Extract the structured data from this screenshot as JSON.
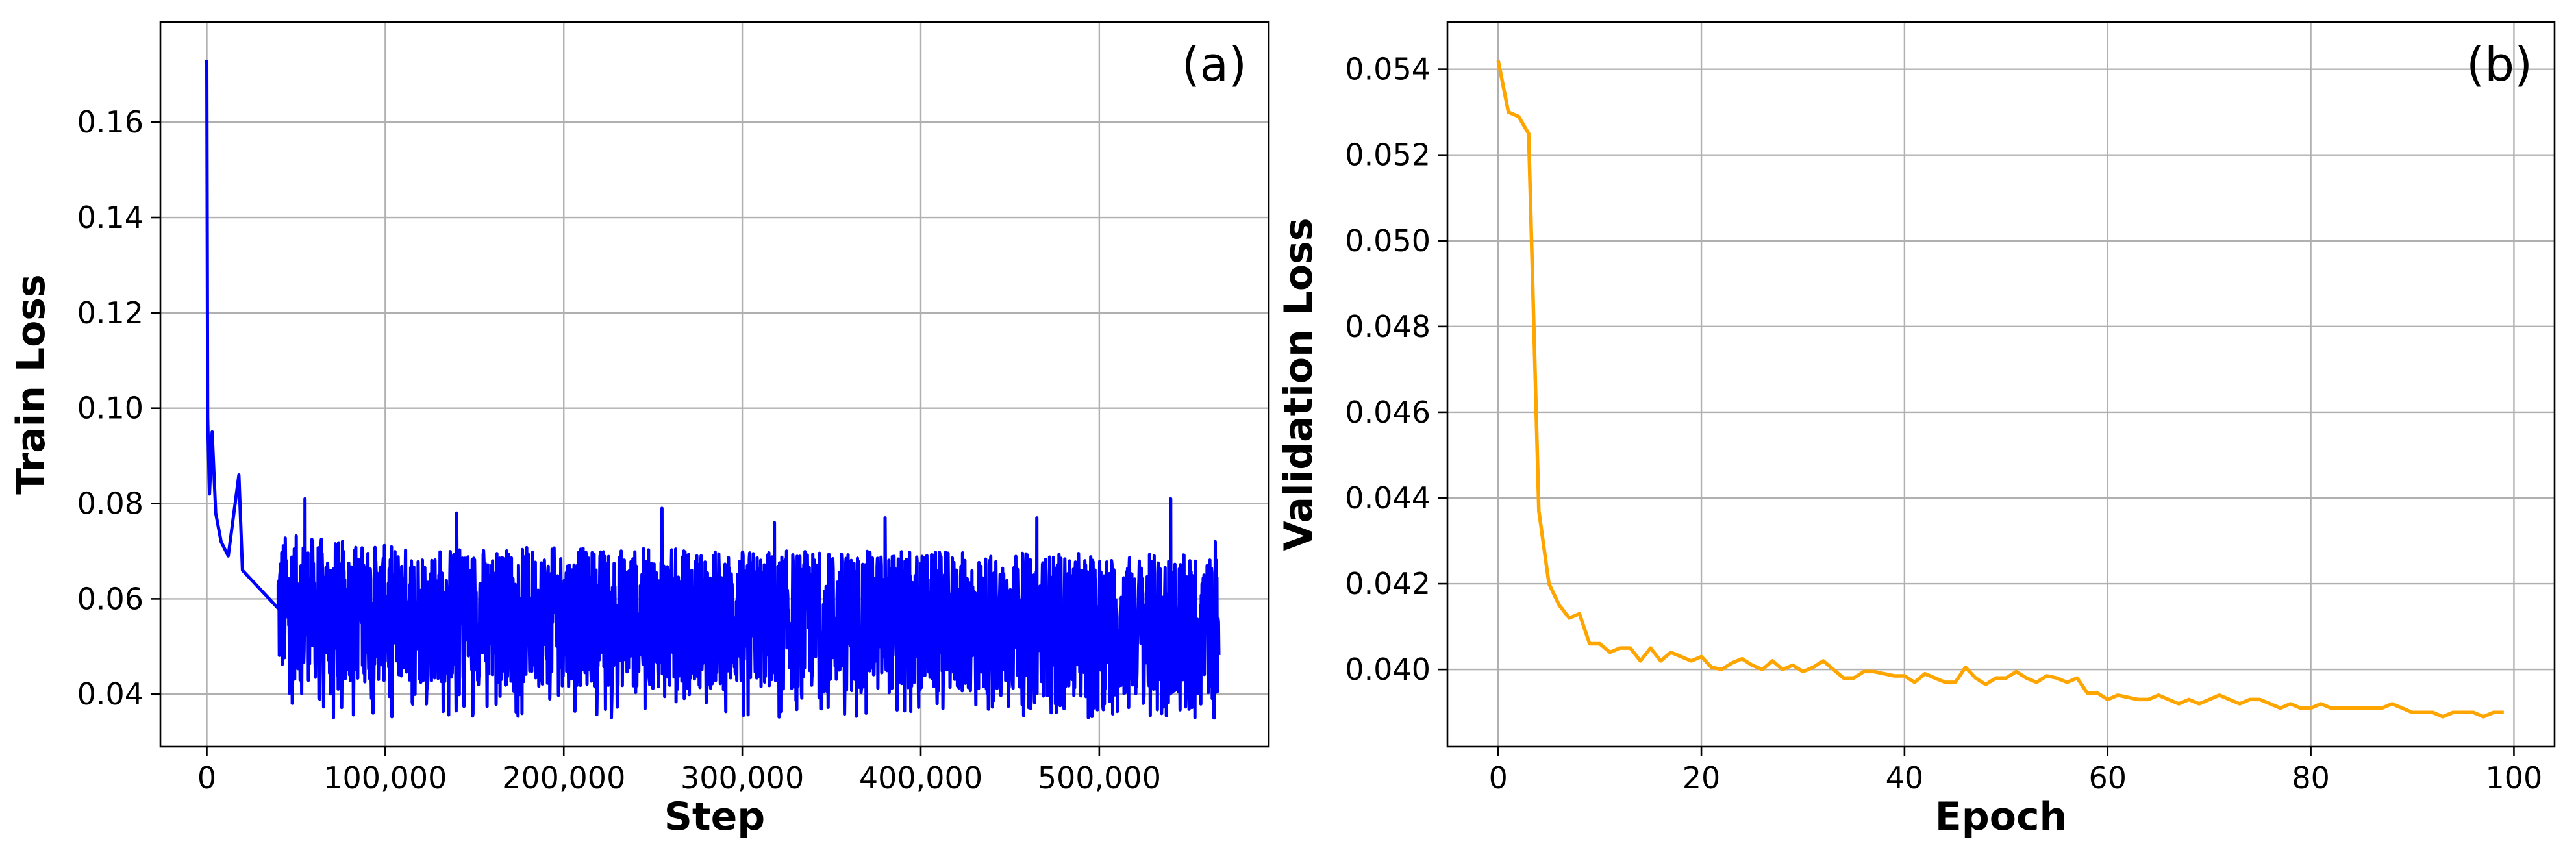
{
  "chart_data": [
    {
      "type": "line",
      "panel_label": "(a)",
      "xlabel": "Step",
      "ylabel": "Train Loss",
      "xlim": [
        -26000,
        595000
      ],
      "ylim": [
        0.029,
        0.181
      ],
      "xticks": [
        0,
        100000,
        200000,
        300000,
        400000,
        500000
      ],
      "xtick_labels": [
        "0",
        "100,000",
        "200,000",
        "300,000",
        "400,000",
        "500,000"
      ],
      "yticks": [
        0.04,
        0.06,
        0.08,
        0.1,
        0.12,
        0.14,
        0.16
      ],
      "ytick_labels": [
        "0.04",
        "0.06",
        "0.08",
        "0.10",
        "0.12",
        "0.14",
        "0.16"
      ],
      "grid": true,
      "color": "#0000ff",
      "series": [
        {
          "x_range": [
            0,
            567000
          ],
          "peak": {
            "x": 0,
            "y": 0.173
          },
          "early_points": [
            [
              0,
              0.173
            ],
            [
              500,
              0.098
            ],
            [
              1500,
              0.082
            ],
            [
              3000,
              0.095
            ],
            [
              5000,
              0.078
            ],
            [
              8000,
              0.072
            ],
            [
              12000,
              0.069
            ],
            [
              20000,
              0.066
            ],
            [
              30000,
              0.062
            ],
            [
              40000,
              0.058
            ]
          ],
          "band_lower": [
            [
              5000,
              0.056
            ],
            [
              20000,
              0.052
            ],
            [
              30000,
              0.048
            ],
            [
              40000,
              0.042
            ],
            [
              567000,
              0.038
            ]
          ],
          "band_upper": [
            [
              5000,
              0.084
            ],
            [
              30000,
              0.075
            ],
            [
              100000,
              0.072
            ],
            [
              567000,
              0.07
            ]
          ],
          "spikes": [
            [
              18000,
              0.086
            ],
            [
              55000,
              0.081
            ],
            [
              140000,
              0.078
            ],
            [
              255000,
              0.079
            ],
            [
              318000,
              0.076
            ],
            [
              380000,
              0.077
            ],
            [
              465000,
              0.077
            ],
            [
              540000,
              0.081
            ],
            [
              565000,
              0.072
            ]
          ],
          "minimum": 0.035
        }
      ]
    },
    {
      "type": "line",
      "panel_label": "(b)",
      "xlabel": "Epoch",
      "ylabel": "Validation Loss",
      "xlim": [
        -5,
        104
      ],
      "ylim": [
        0.0382,
        0.0551
      ],
      "xticks": [
        0,
        20,
        40,
        60,
        80,
        100
      ],
      "xtick_labels": [
        "0",
        "20",
        "40",
        "60",
        "80",
        "100"
      ],
      "yticks": [
        0.04,
        0.042,
        0.044,
        0.046,
        0.048,
        0.05,
        0.052,
        0.054
      ],
      "ytick_labels": [
        "0.040",
        "0.042",
        "0.044",
        "0.046",
        "0.048",
        "0.050",
        "0.052",
        "0.054"
      ],
      "grid": true,
      "color": "#ffa500",
      "series": [
        {
          "x": [
            0,
            1,
            2,
            3,
            4,
            5,
            6,
            7,
            8,
            9,
            10,
            11,
            12,
            13,
            14,
            15,
            16,
            17,
            18,
            19,
            20,
            21,
            22,
            23,
            24,
            25,
            26,
            27,
            28,
            29,
            30,
            31,
            32,
            33,
            34,
            35,
            36,
            37,
            38,
            39,
            40,
            41,
            42,
            43,
            44,
            45,
            46,
            47,
            48,
            49,
            50,
            51,
            52,
            53,
            54,
            55,
            56,
            57,
            58,
            59,
            60,
            61,
            62,
            63,
            64,
            65,
            66,
            67,
            68,
            69,
            70,
            71,
            72,
            73,
            74,
            75,
            76,
            77,
            78,
            79,
            80,
            81,
            82,
            83,
            84,
            85,
            86,
            87,
            88,
            89,
            90,
            91,
            92,
            93,
            94,
            95,
            96,
            97,
            98,
            99
          ],
          "y": [
            0.0542,
            0.053,
            0.0529,
            0.0525,
            0.0437,
            0.042,
            0.0415,
            0.0412,
            0.0413,
            0.0406,
            0.0406,
            0.0404,
            0.0405,
            0.0405,
            0.0402,
            0.0405,
            0.0402,
            0.0404,
            0.0403,
            0.0402,
            0.0403,
            0.04005,
            0.04,
            0.04015,
            0.04025,
            0.0401,
            0.04,
            0.0402,
            0.04,
            0.0401,
            0.03995,
            0.04005,
            0.0402,
            0.04,
            0.0398,
            0.0398,
            0.03995,
            0.03995,
            0.0399,
            0.03985,
            0.03985,
            0.0397,
            0.0399,
            0.0398,
            0.0397,
            0.0397,
            0.04005,
            0.0398,
            0.03965,
            0.0398,
            0.0398,
            0.03995,
            0.0398,
            0.0397,
            0.03985,
            0.0398,
            0.0397,
            0.0398,
            0.03945,
            0.03945,
            0.0393,
            0.0394,
            0.03935,
            0.0393,
            0.0393,
            0.0394,
            0.0393,
            0.0392,
            0.0393,
            0.0392,
            0.0393,
            0.0394,
            0.0393,
            0.0392,
            0.0393,
            0.0393,
            0.0392,
            0.0391,
            0.0392,
            0.0391,
            0.0391,
            0.0392,
            0.0391,
            0.0391,
            0.0391,
            0.0391,
            0.0391,
            0.0391,
            0.0392,
            0.0391,
            0.039,
            0.039,
            0.039,
            0.0389,
            0.039,
            0.039,
            0.039,
            0.0389,
            0.039,
            0.039
          ]
        }
      ]
    }
  ]
}
